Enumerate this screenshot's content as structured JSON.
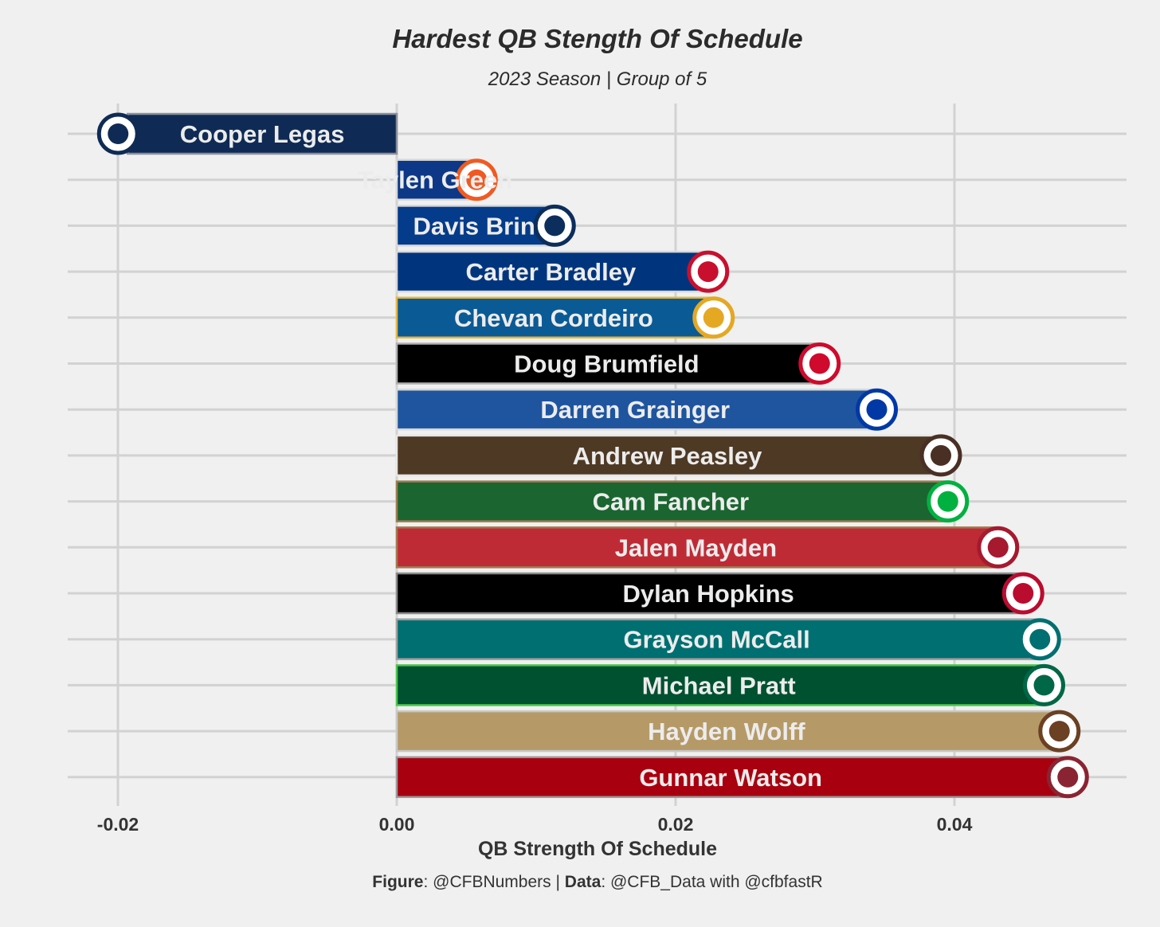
{
  "title": "Hardest QB Stength Of Schedule",
  "subtitle": "2023 Season | Group of 5",
  "caption": {
    "figure_label": "Figure",
    "figure_value": ": @CFBNumbers | ",
    "data_label": "Data",
    "data_value": ": @CFB_Data with @cfbfastR"
  },
  "chart_data": {
    "type": "bar",
    "orientation": "horizontal",
    "xlabel": "QB Strength Of Schedule",
    "ylabel": "",
    "xlim": [
      -0.0215,
      0.0525
    ],
    "xticks": [
      -0.02,
      0.0,
      0.02,
      0.04
    ],
    "xtick_labels": [
      "-0.02",
      "0.00",
      "0.02",
      "0.04"
    ],
    "grid": true,
    "categories": [
      "Cooper Legas",
      "Taylen Green",
      "Davis Brin",
      "Carter Bradley",
      "Chevan Cordeiro",
      "Doug Brumfield",
      "Darren Grainger",
      "Andrew Peasley",
      "Cam Fancher",
      "Jalen Mayden",
      "Dylan Hopkins",
      "Grayson McCall",
      "Michael Pratt",
      "Hayden Wolff",
      "Gunnar Watson"
    ],
    "values": [
      -0.0193,
      0.0055,
      0.0111,
      0.0221,
      0.0225,
      0.0301,
      0.0342,
      0.0388,
      0.0393,
      0.0429,
      0.0447,
      0.0459,
      0.0462,
      0.0473,
      0.0479
    ],
    "colors": [
      "#0f2b55",
      "#0c3887",
      "#043b8a",
      "#00357e",
      "#0a5a96",
      "#000000",
      "#1f559f",
      "#4e3924",
      "#1b6530",
      "#bf2b35",
      "#000000",
      "#006f71",
      "#005130",
      "#b59a68",
      "#a8000f"
    ],
    "outline_colors": [
      "#8a8f99",
      "#d8d8d8",
      "#d8d8d8",
      "#d8d8d8",
      "#e8b53a",
      "#b0b0b0",
      "#d8d8d8",
      "#e6e6e6",
      "#a07a50",
      "#a07a50",
      "#8a8a8a",
      "#a0a0a0",
      "#4cc44c",
      "#c8c8c8",
      "#9a9a9a"
    ],
    "logos": [
      "utah-state-logo",
      "boise-state-logo",
      "georgia-southern-logo",
      "south-alabama-logo",
      "san-jose-state-logo",
      "unlv-logo",
      "georgia-state-logo",
      "wyoming-logo",
      "marshall-logo",
      "san-diego-state-logo",
      "new-mexico-logo",
      "coastal-carolina-logo",
      "tulane-logo",
      "western-michigan-logo",
      "troy-logo"
    ],
    "logo_colors": [
      "#0f2b55",
      "#f05a22",
      "#0c2e5c",
      "#c8102e",
      "#e5a823",
      "#cf0a2c",
      "#0039a6",
      "#492f24",
      "#00b140",
      "#a6192e",
      "#ba0c2f",
      "#006f71",
      "#006747",
      "#6c4023",
      "#8a2432"
    ]
  }
}
